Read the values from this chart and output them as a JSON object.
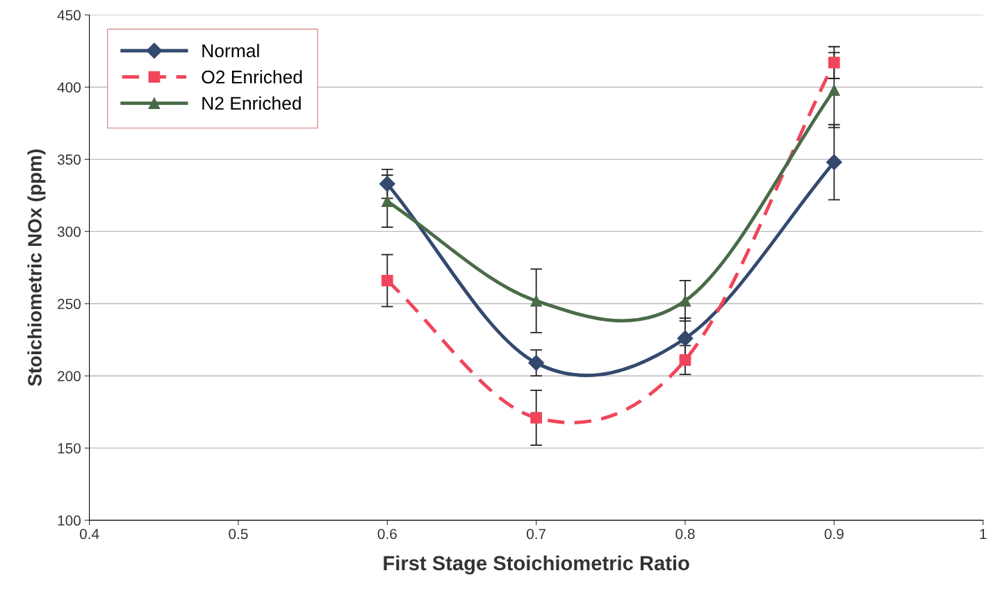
{
  "chart_data": {
    "type": "line",
    "xlabel": "First Stage Stoichiometric Ratio",
    "ylabel": "Stoichiometric NOx (ppm)",
    "x": [
      0.6,
      0.7,
      0.8,
      0.9
    ],
    "series": [
      {
        "name": "Normal",
        "color": "#34496e",
        "marker": "diamond",
        "line_style": "solid",
        "values": [
          333,
          209,
          226,
          348
        ],
        "errors": [
          10,
          9,
          14,
          26
        ]
      },
      {
        "name": "O2 Enriched",
        "color": "#f0455a",
        "marker": "square",
        "line_style": "dashed",
        "values": [
          266,
          171,
          211,
          417
        ],
        "errors": [
          18,
          19,
          10,
          11
        ]
      },
      {
        "name": "N2 Enriched",
        "color": "#4a6b48",
        "marker": "triangle",
        "line_style": "solid",
        "values": [
          321,
          252,
          252,
          398
        ],
        "errors": [
          18,
          22,
          14,
          26
        ]
      }
    ],
    "xlim": [
      0.4,
      1
    ],
    "xticks": [
      0.4,
      0.5,
      0.6,
      0.7,
      0.8,
      0.9,
      1
    ],
    "ylim": [
      100,
      450
    ],
    "yticks": [
      100,
      150,
      200,
      250,
      300,
      350,
      400,
      450
    ],
    "grid": "y",
    "legend": "top left"
  }
}
